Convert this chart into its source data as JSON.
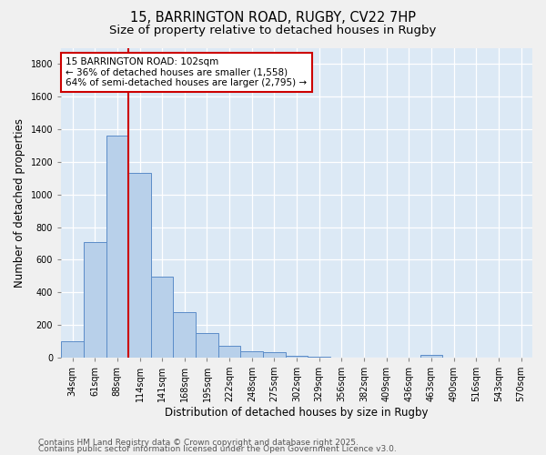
{
  "title1": "15, BARRINGTON ROAD, RUGBY, CV22 7HP",
  "title2": "Size of property relative to detached houses in Rugby",
  "xlabel": "Distribution of detached houses by size in Rugby",
  "ylabel": "Number of detached properties",
  "categories": [
    "34sqm",
    "61sqm",
    "88sqm",
    "114sqm",
    "141sqm",
    "168sqm",
    "195sqm",
    "222sqm",
    "248sqm",
    "275sqm",
    "302sqm",
    "329sqm",
    "356sqm",
    "382sqm",
    "409sqm",
    "436sqm",
    "463sqm",
    "490sqm",
    "516sqm",
    "543sqm",
    "570sqm"
  ],
  "values": [
    100,
    710,
    1360,
    1130,
    495,
    278,
    148,
    72,
    38,
    32,
    10,
    3,
    2,
    1,
    1,
    0,
    15,
    0,
    0,
    0,
    0
  ],
  "bar_color": "#b8d0ea",
  "bar_edge_color": "#5b8cc8",
  "vline_x": 2.5,
  "vline_color": "#cc0000",
  "annotation_text": "15 BARRINGTON ROAD: 102sqm\n← 36% of detached houses are smaller (1,558)\n64% of semi-detached houses are larger (2,795) →",
  "annotation_box_color": "#ffffff",
  "annotation_box_edge": "#cc0000",
  "ylim": [
    0,
    1900
  ],
  "yticks": [
    0,
    200,
    400,
    600,
    800,
    1000,
    1200,
    1400,
    1600,
    1800
  ],
  "background_color": "#dce9f5",
  "grid_color": "#ffffff",
  "footer1": "Contains HM Land Registry data © Crown copyright and database right 2025.",
  "footer2": "Contains public sector information licensed under the Open Government Licence v3.0.",
  "title1_fontsize": 10.5,
  "title2_fontsize": 9.5,
  "xlabel_fontsize": 8.5,
  "ylabel_fontsize": 8.5,
  "tick_fontsize": 7,
  "annotation_fontsize": 7.5,
  "footer_fontsize": 6.5
}
